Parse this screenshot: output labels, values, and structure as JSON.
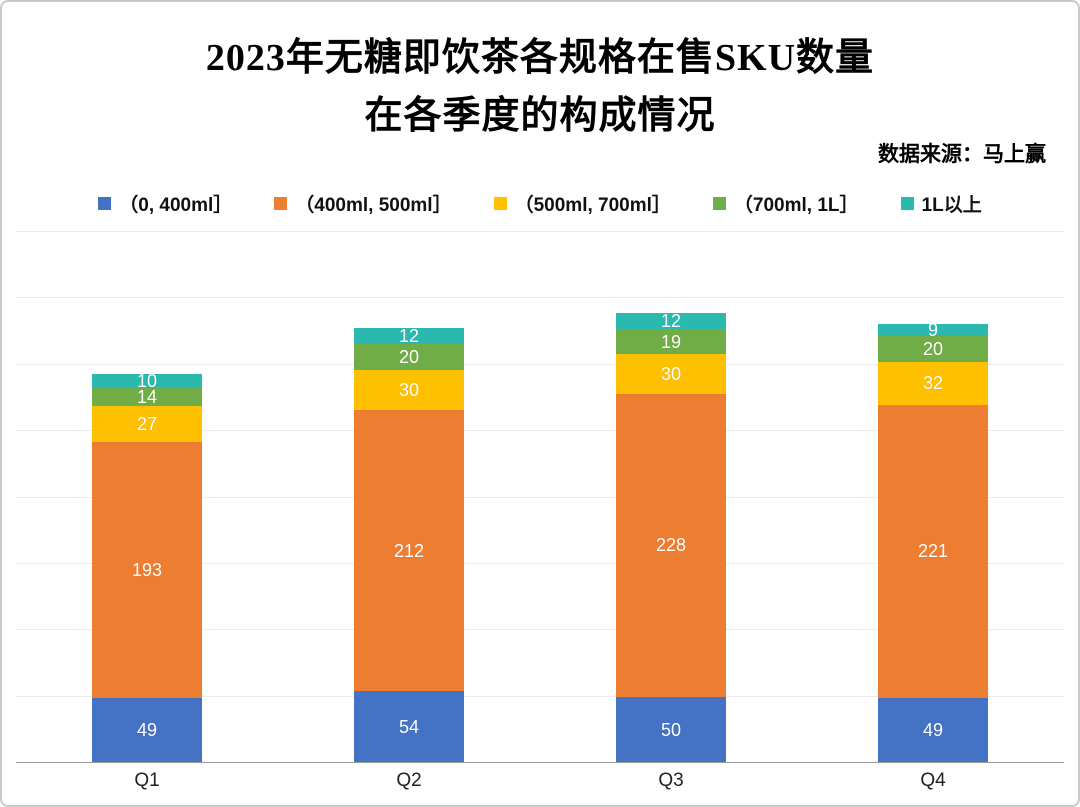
{
  "title_line1": "2023年无糖即饮茶各规格在售SKU数量",
  "title_line2": "在各季度的构成情况",
  "source": "数据来源：马上赢",
  "chart_data": {
    "type": "bar",
    "stacked": true,
    "title": "2023年无糖即饮茶各规格在售SKU数量 在各季度的构成情况",
    "categories": [
      "Q1",
      "Q2",
      "Q3",
      "Q4"
    ],
    "series": [
      {
        "name": "（0, 400ml］",
        "color": "#4472C4",
        "values": [
          49,
          54,
          50,
          49
        ]
      },
      {
        "name": "（400ml, 500ml］",
        "color": "#ED7D31",
        "values": [
          193,
          212,
          228,
          221
        ]
      },
      {
        "name": "（500ml, 700ml］",
        "color": "#FFC000",
        "values": [
          27,
          30,
          30,
          32
        ]
      },
      {
        "name": "（700ml, 1L］",
        "color": "#70AD47",
        "values": [
          14,
          20,
          19,
          20
        ]
      },
      {
        "name": "1L以上",
        "color": "#2BB8AF",
        "values": [
          10,
          12,
          12,
          9
        ]
      }
    ],
    "totals": [
      293,
      328,
      339,
      331
    ],
    "ylim": [
      0,
      400
    ],
    "grid_step": 50,
    "grid": true,
    "legend_position": "top",
    "xlabel": "",
    "ylabel": ""
  }
}
